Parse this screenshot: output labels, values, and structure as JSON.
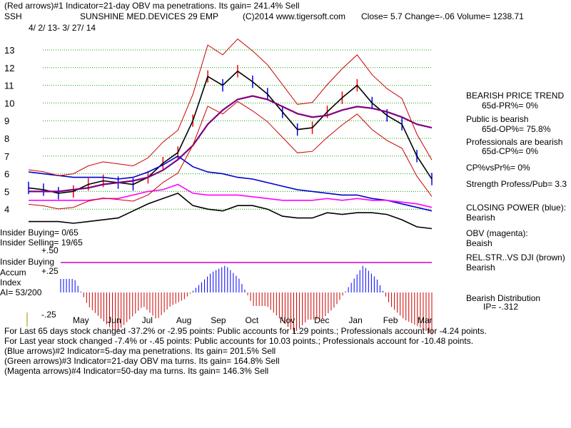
{
  "header": {
    "line1": "(Red arrows)#1 Indicator=21-day OBV ma penetrations. Its gain= 241.4% Sell",
    "symbol": "SSH",
    "name": "SUNSHINE MED.DEVICES 29 EMP",
    "copyright": "(C)2014 www.tigersoft.com",
    "quote": "Close=  5.7  Change=-.06 Volume= 1238.71",
    "date_range": "4/ 2/ 13-  3/ 27/ 14"
  },
  "left_labels": {
    "insider_buying": "Insider Buying= 0/65",
    "insider_selling": "Insider Selling= 19/65",
    "plus50": "+.50",
    "insider_buying_accum": "Insider Buying",
    "accum": "Accum",
    "index": "Index",
    "ai": "AI= 53/200",
    "plus25": "+.25",
    "minus25": "-.25"
  },
  "right_panel": {
    "trend_title": "BEARISH PRICE TREND",
    "pr": "65d-PR%= 0%",
    "public": "Public is bearish",
    "op": "65d-OP%= 75.8%",
    "professionals": "Professionals are bearish",
    "cp": "65d-CP%= 0%",
    "cpvspr": "CP%vsPr%=  0%",
    "strength": "Strength Profess/Pub= 3.3",
    "closing_power": "CLOSING POWER (blue):",
    "cp_state": "Bearish",
    "obv": "OBV (magenta):",
    "obv_state": "Beaish",
    "relstr": "REL.STR..VS DJI (brown)",
    "relstr_state": "Bearish",
    "distribution": "Bearish Distribution",
    "ip": "IP= -.312"
  },
  "footer": {
    "line1": "For Last 65 days stock changed -37.2% or -2.95 points:  Public accounts for  1.29 points.;  Professionals account for -4.24 points.",
    "line2": "For Last year stock changed -7.4% or -.45 points:  Public accounts for  10.03 points.;  Professionals account for -10.48 points.",
    "line3": "(Blue arrows)#2 Indicator=5-day ma penetrations. Its gain= 201.5% Sell",
    "line4": "(Green arrows)#3 Indicator=21-day OBV ma turns. Its gain= 164.8% Sell",
    "line5": "(Magenta arrows)#4 Indicator=50-day ma turns. Its gain= 146.3% Sell"
  },
  "chart_data": {
    "type": "line",
    "y_ticks": [
      13,
      12,
      11,
      10,
      9,
      8,
      7,
      6,
      5,
      4
    ],
    "ylim": [
      3.5,
      13.5
    ],
    "grid": true,
    "months": [
      "May",
      "Jun",
      "Jul",
      "Aug",
      "Sep",
      "Oct",
      "Nov",
      "Dec",
      "Jan",
      "Feb",
      "Mar"
    ],
    "series": [
      {
        "values": [
          5.2,
          5.1,
          4.9,
          5.0,
          5.4,
          5.6,
          5.5,
          5.4,
          5.8,
          6.6,
          7.2,
          9.0,
          11.5,
          11.0,
          11.8,
          11.2,
          10.5,
          9.5,
          8.5,
          8.6,
          9.5,
          10.3,
          11.0,
          10.0,
          9.3,
          8.8,
          7.0,
          5.7
        ],
        "color": "#000000"
      },
      {
        "values": [
          5.0,
          5.0,
          5.0,
          5.1,
          5.2,
          5.4,
          5.5,
          5.6,
          5.8,
          6.2,
          6.8,
          7.6,
          8.8,
          9.6,
          10.2,
          10.4,
          10.2,
          9.8,
          9.4,
          9.2,
          9.3,
          9.6,
          9.8,
          9.7,
          9.5,
          9.2,
          8.8,
          8.6
        ],
        "color": "#800080"
      },
      {
        "values": [
          6.1,
          6.0,
          5.9,
          5.8,
          5.8,
          5.8,
          5.7,
          5.8,
          6.1,
          6.5,
          7.0,
          6.4,
          6.1,
          6.0,
          5.8,
          5.7,
          5.5,
          5.3,
          5.1,
          5.0,
          4.9,
          4.8,
          4.8,
          4.6,
          4.5,
          4.3,
          4.1,
          3.9
        ],
        "color": "#0000cc"
      },
      {
        "values": [
          4.5,
          4.5,
          4.5,
          4.5,
          4.5,
          4.6,
          4.6,
          4.8,
          5.0,
          5.1,
          5.4,
          4.9,
          4.8,
          4.8,
          4.8,
          4.7,
          4.6,
          4.5,
          4.5,
          4.5,
          4.6,
          4.5,
          4.6,
          4.5,
          4.5,
          4.4,
          4.3,
          4.1
        ],
        "color": "#ff00ff"
      },
      {
        "values": [
          3.3,
          3.3,
          3.3,
          3.2,
          3.3,
          3.4,
          3.5,
          3.9,
          4.3,
          4.6,
          4.9,
          4.2,
          4.0,
          3.9,
          4.2,
          4.2,
          4.0,
          3.6,
          3.5,
          3.5,
          3.8,
          3.7,
          3.8,
          3.8,
          3.7,
          3.4,
          3.0,
          2.9
        ],
        "color": "#000000"
      }
    ],
    "accum_values": [
      0.1,
      0.1,
      -0.1,
      -0.2,
      -0.3,
      -0.2,
      -0.1,
      -0.2,
      -0.1,
      -0.05,
      0.05,
      0.15,
      0.2,
      0.1,
      -0.1,
      -0.1,
      -0.2,
      -0.3,
      -0.2,
      -0.2,
      -0.1,
      0.05,
      0.2,
      0.1,
      -0.1,
      -0.2,
      -0.25,
      -0.31
    ],
    "accum_ylim": [
      -0.35,
      0.3
    ]
  },
  "colors": {
    "grid": "#00aa00",
    "price_up": "#ff0000",
    "price_dn": "#0000ff",
    "accum_pos": "#0000ff",
    "accum_neg": "#cc0000",
    "band": "#cc0000",
    "rule": "#cc00cc"
  }
}
